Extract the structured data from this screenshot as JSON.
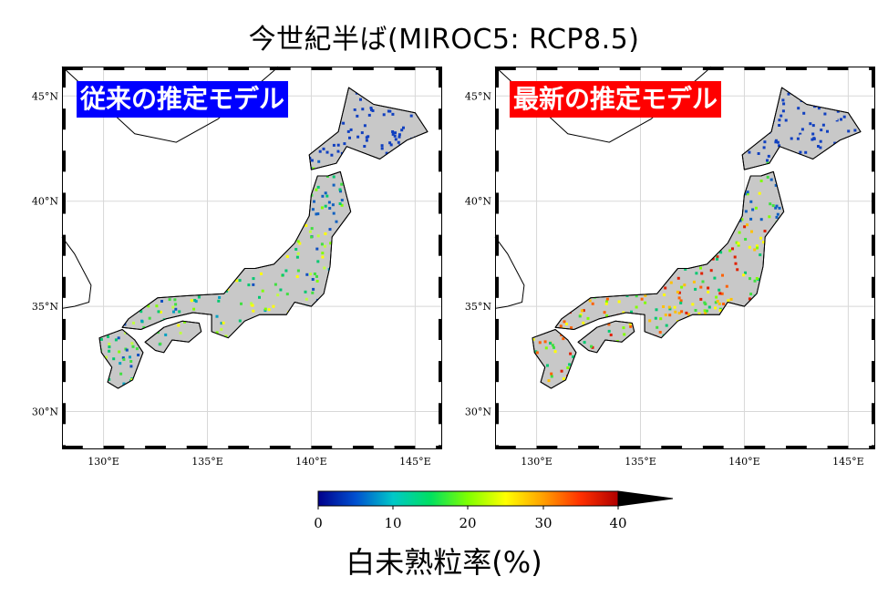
{
  "title": "今世紀半ば(MIROC5: RCP8.5)",
  "panels": [
    {
      "label": "従来の推定モデル",
      "label_bg": "#0000ff"
    },
    {
      "label": "最新の推定モデル",
      "label_bg": "#ff0000"
    }
  ],
  "axes": {
    "lat_ticks": [
      "45°N",
      "40°N",
      "35°N",
      "30°N"
    ],
    "lon_ticks": [
      "130°E",
      "135°E",
      "140°E",
      "145°E"
    ]
  },
  "colorbar": {
    "ticks": [
      "0",
      "10",
      "20",
      "30",
      "40"
    ],
    "colors": [
      "#00008b",
      "#0050d0",
      "#00c8c8",
      "#00e060",
      "#80ff00",
      "#ffff00",
      "#ffa000",
      "#ff3000",
      "#b00000"
    ],
    "extend_color": "#000000",
    "label": "白未熟粒率(%)"
  }
}
